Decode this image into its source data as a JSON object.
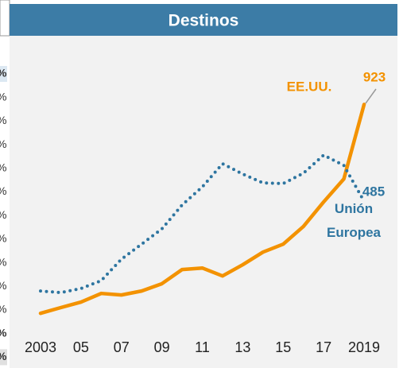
{
  "left_fragments": [
    "%",
    "%",
    "%",
    "%",
    "%",
    "%",
    "%",
    "%",
    "%",
    "%",
    "%",
    "%",
    "%"
  ],
  "chart_data": {
    "type": "line",
    "title": "Destinos",
    "categories": [
      "2003",
      null,
      "05",
      null,
      "07",
      null,
      "09",
      null,
      "11",
      null,
      "13",
      null,
      "15",
      null,
      "17",
      null,
      "2019"
    ],
    "series": [
      {
        "name": "EE.UU.",
        "color": "#f39200",
        "style": "solid",
        "values": [
          -22,
          4,
          29,
          68,
          61,
          79,
          112,
          176,
          183,
          147,
          198,
          255,
          291,
          371,
          482,
          586,
          923
        ],
        "end_label": "923"
      },
      {
        "name": "Unión Europea",
        "color": "#2e75a0",
        "style": "dotted",
        "values": [
          79,
          72,
          90,
          126,
          223,
          291,
          360,
          468,
          550,
          655,
          608,
          568,
          565,
          612,
          694,
          647,
          485
        ],
        "end_label": "485"
      }
    ],
    "ylim": [
      -50,
      1000
    ]
  }
}
